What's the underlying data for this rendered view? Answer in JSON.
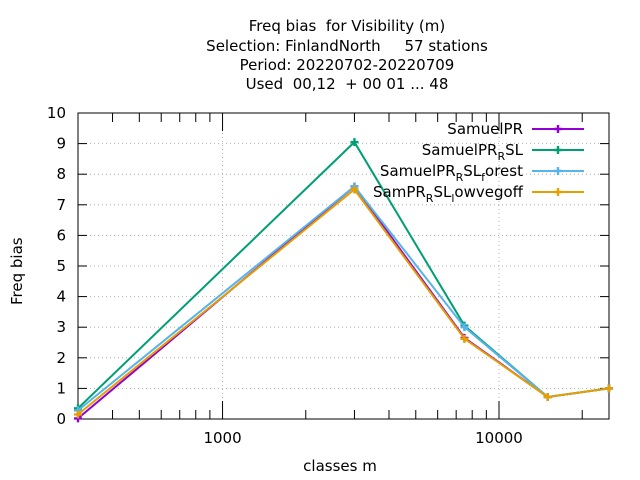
{
  "chart_data": {
    "type": "line",
    "title_lines": [
      "Freq bias  for Visibility (m)",
      "Selection: FinlandNorth     57 stations",
      "Period: 20220702-20220709",
      "Used  00,12  + 00 01 ... 48"
    ],
    "xlabel": "classes m",
    "ylabel": "Freq bias",
    "x_scale": "log",
    "xlim": [
      300,
      25000
    ],
    "ylim": [
      0,
      10
    ],
    "x_ticks": [
      "1000",
      "10000"
    ],
    "y_ticks": [
      "0",
      "1",
      "2",
      "3",
      "4",
      "5",
      "6",
      "7",
      "8",
      "9",
      "10"
    ],
    "grid": true,
    "legend_position": "top-right",
    "x": [
      300,
      3000,
      7500,
      15000,
      25000
    ],
    "series": [
      {
        "name": "SamuelPR",
        "color": "#9400d3",
        "marker": "plus",
        "values": [
          0.02,
          7.6,
          2.65,
          0.72,
          1.0
        ]
      },
      {
        "name": "SamuelPR_RSL",
        "color": "#009e73",
        "marker": "plus",
        "values": [
          0.35,
          9.05,
          3.05,
          0.72,
          1.0
        ]
      },
      {
        "name": "SamuelPR_RSL_forest",
        "color": "#56b4e9",
        "marker": "plus",
        "values": [
          0.28,
          7.6,
          3.0,
          0.72,
          1.0
        ]
      },
      {
        "name": "SamPR_RSL_lowvegoff",
        "color": "#e69f00",
        "marker": "plus",
        "values": [
          0.15,
          7.5,
          2.62,
          0.72,
          1.0
        ]
      }
    ],
    "legend_labels": [
      {
        "main": "SamuelPR",
        "parts": []
      },
      {
        "main": "SamuelPR",
        "parts": [
          {
            "sub": "R",
            "tail": "SL"
          }
        ]
      },
      {
        "main": "SamuelPR",
        "parts": [
          {
            "sub": "R",
            "tail": "SL"
          },
          {
            "sub": "f",
            "tail": "orest"
          }
        ]
      },
      {
        "main": "SamPR",
        "parts": [
          {
            "sub": "R",
            "tail": "SL"
          },
          {
            "sub": "l",
            "tail": "owvegoff"
          }
        ]
      }
    ]
  }
}
